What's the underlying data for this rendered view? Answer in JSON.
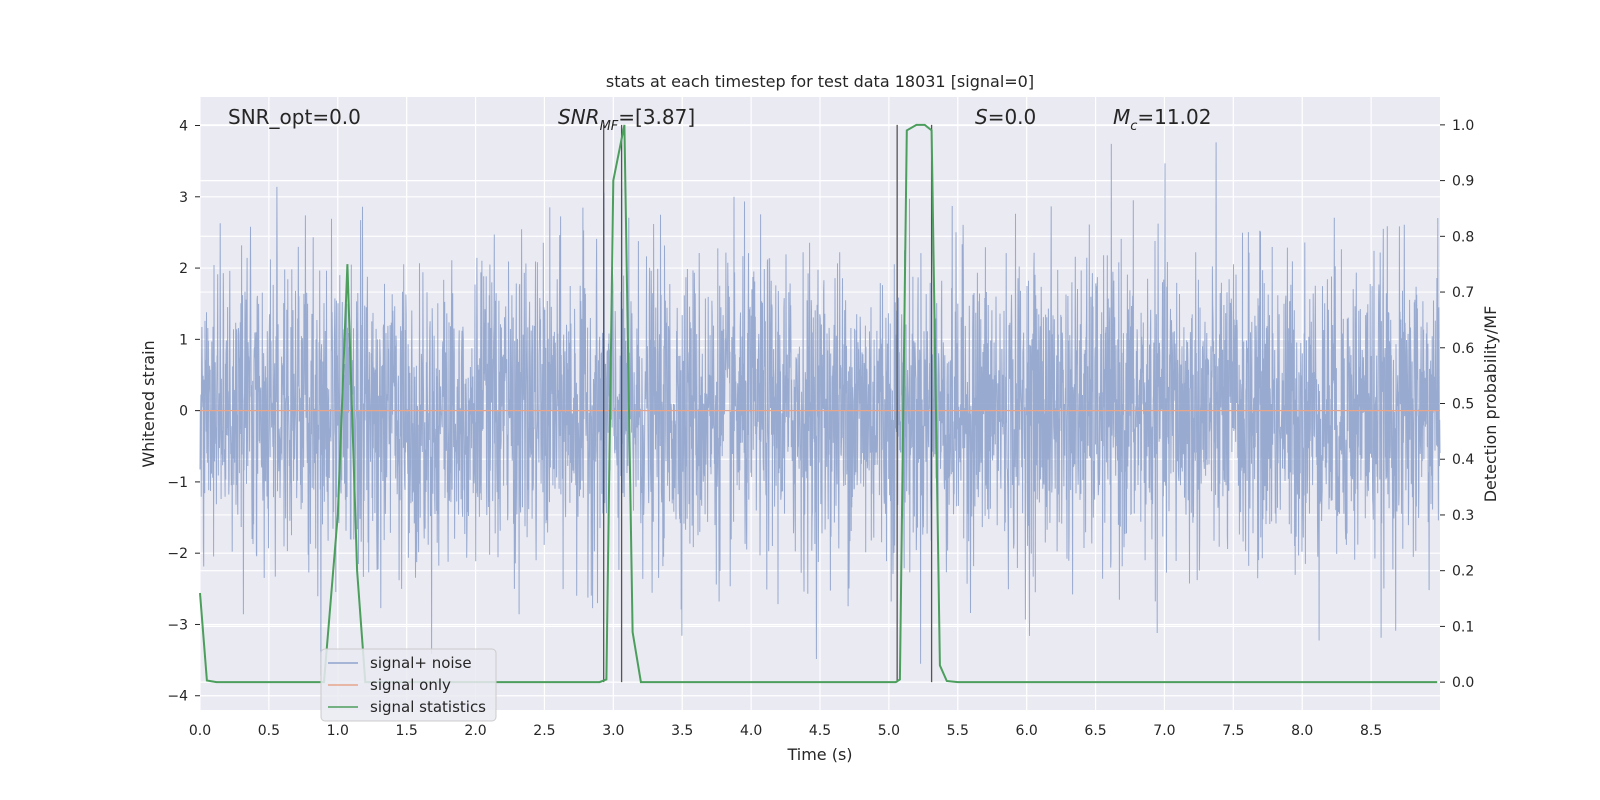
{
  "chart_data": {
    "type": "line",
    "title": "stats at each timestep for test data 18031 [signal=0]",
    "xlabel": "Time (s)",
    "ylabel_left": "Whitened strain",
    "ylabel_right": "Detection probability/MF",
    "xlim": [
      0,
      9.0
    ],
    "ylim_left": [
      -4.2,
      4.4
    ],
    "ylim_right": [
      -0.05,
      1.05
    ],
    "xticks": [
      "0.0",
      "0.5",
      "1.0",
      "1.5",
      "2.0",
      "2.5",
      "3.0",
      "3.5",
      "4.0",
      "4.5",
      "5.0",
      "5.5",
      "6.0",
      "6.5",
      "7.0",
      "7.5",
      "8.0",
      "8.5"
    ],
    "yticks_left": [
      "4",
      "3",
      "2",
      "1",
      "0",
      "−1",
      "−2",
      "−3",
      "−4"
    ],
    "yticks_right": [
      "1.0",
      "0.9",
      "0.8",
      "0.7",
      "0.6",
      "0.5",
      "0.4",
      "0.3",
      "0.2",
      "0.1",
      "0.0"
    ],
    "grid": true,
    "legend_placement": "lower-left",
    "annotations": {
      "snr_opt": "SNR_opt=0.0",
      "snr_mf_main": "SNR",
      "snr_mf_sub": "MF",
      "snr_mf_value": "=[3.87]",
      "s_main": "S",
      "s_value": "=0.0",
      "mc_main": "M",
      "mc_sub": "c",
      "mc_value": "=11.02"
    },
    "series": [
      {
        "name": "signal+ noise",
        "axis": "left",
        "color": "#8fa3cc",
        "note_style": "dense noisy strain, roughly gaussian, peaks near 3.8 / -3.8",
        "envelope_amplitude": 1.6
      },
      {
        "name": "signal only",
        "axis": "left",
        "color": "#e8a58a",
        "values": "flat at 0"
      },
      {
        "name": "signal statistics",
        "axis": "right",
        "color": "#4c9e5d",
        "x": [
          0.0,
          0.05,
          0.12,
          0.9,
          1.0,
          1.07,
          1.14,
          1.2,
          1.8,
          2.5,
          2.9,
          2.95,
          3.0,
          3.08,
          3.14,
          3.2,
          4.0,
          5.05,
          5.08,
          5.13,
          5.2,
          5.26,
          5.31,
          5.37,
          5.42,
          5.5,
          6.5,
          8.98
        ],
        "y": [
          0.16,
          0.003,
          0.0,
          0.0,
          0.3,
          0.75,
          0.2,
          0.0,
          0.0,
          0.0,
          0.0,
          0.005,
          0.9,
          1.0,
          0.09,
          0.0,
          0.0,
          0.0,
          0.005,
          0.99,
          1.0,
          1.0,
          0.99,
          0.03,
          0.002,
          0.0,
          0.0,
          0.0
        ]
      }
    ],
    "vertical_lines_x": [
      2.93,
      3.06,
      5.06,
      5.31
    ],
    "legend": [
      "signal+ noise",
      "signal only",
      "signal statistics"
    ],
    "colors": {
      "plot_bg": "#eaeaf2",
      "grid": "#ffffff",
      "noise": "#8fa3cc",
      "signal_only": "#e8a58a",
      "stats": "#4c9e5d",
      "vline": "#555555"
    }
  }
}
